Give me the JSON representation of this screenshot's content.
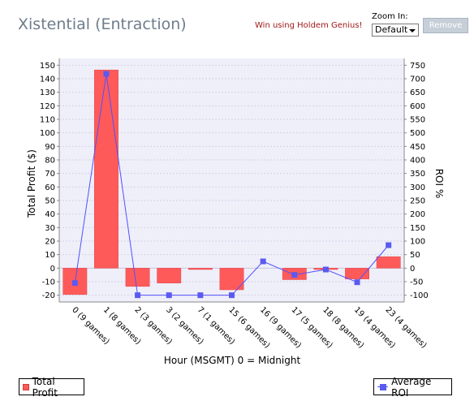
{
  "header": {
    "title": "Xistential (Entraction)",
    "promo_link": "Win using Holdem Genius!",
    "zoom_label": "Zoom In:",
    "zoom_value": "Default",
    "remove_label": "Remove"
  },
  "chart_data": {
    "type": "bar",
    "categories": [
      "0 (9 games)",
      "1 (8 games)",
      "2 (3 games)",
      "3 (2 games)",
      "7 (1 games)",
      "15 (6 games)",
      "16 (9 games)",
      "17 (5 games)",
      "18 (8 games)",
      "19 (4 games)",
      "23 (4 games)"
    ],
    "xlabel": "Hour (MSGMT) 0 = Midnight",
    "ylabel": "Total Profit ($)",
    "y2label": "ROI %",
    "ylim": [
      -25,
      155
    ],
    "y2lim": [
      -125,
      775
    ],
    "yticks": [
      -20,
      -10,
      0,
      10,
      20,
      30,
      40,
      50,
      60,
      70,
      80,
      90,
      100,
      110,
      120,
      130,
      140,
      150
    ],
    "y2ticks": [
      -100,
      -50,
      0,
      50,
      100,
      150,
      200,
      250,
      300,
      350,
      400,
      450,
      500,
      550,
      600,
      650,
      700,
      750
    ],
    "grid": true,
    "series": [
      {
        "name": "Total Profit",
        "kind": "bar",
        "color": "#ff5a5a",
        "values": [
          -19.5,
          146.5,
          -13.5,
          -11,
          -1,
          -16,
          0,
          -8.5,
          -1,
          -8,
          8.5
        ]
      },
      {
        "name": "Average ROI",
        "kind": "line",
        "axis": "right",
        "color": "#5050ff",
        "values": [
          -55,
          718,
          -100,
          -100,
          -100,
          -100,
          25,
          -25,
          -5,
          -52,
          85
        ]
      }
    ],
    "legend_placement": "bottom"
  }
}
